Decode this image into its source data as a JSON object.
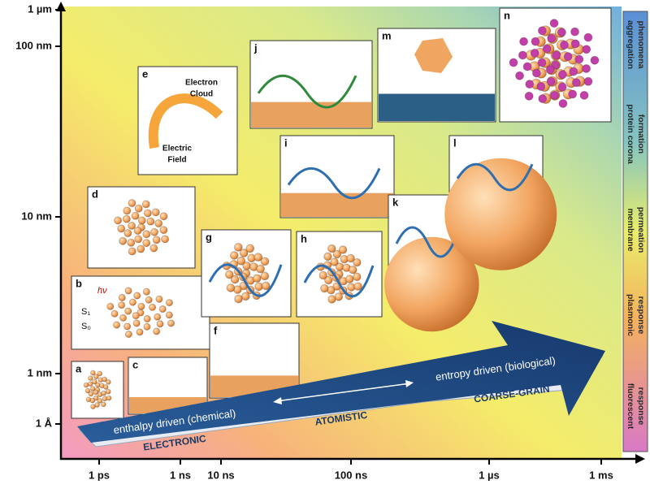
{
  "y_axis": {
    "labels": [
      "1 µm",
      "100 nm",
      "10 nm",
      "1 nm",
      "1 Å"
    ]
  },
  "x_axis": {
    "labels": [
      "1 ps",
      "1 ns",
      "10 ns",
      "100 ns",
      "1 µs",
      "1 ms"
    ]
  },
  "panels": [
    {
      "letter": "a"
    },
    {
      "letter": "b",
      "texts": [
        "hν",
        "S₁",
        "S₀"
      ]
    },
    {
      "letter": "c"
    },
    {
      "letter": "d"
    },
    {
      "letter": "e",
      "texts": [
        "Electron",
        "Cloud",
        "Electric",
        "Field"
      ]
    },
    {
      "letter": "f"
    },
    {
      "letter": "g"
    },
    {
      "letter": "h"
    },
    {
      "letter": "i"
    },
    {
      "letter": "j"
    },
    {
      "letter": "k"
    },
    {
      "letter": "l"
    },
    {
      "letter": "m"
    },
    {
      "letter": "n"
    }
  ],
  "arrow": {
    "upper_left": "enthalpy driven (chemical)",
    "upper_right": "entropy driven (biological)",
    "scales": [
      "ELECTRONIC",
      "ATOMISTIC",
      "COARSE-GRAIN"
    ]
  },
  "sidebar": [
    [
      "aggregation",
      "phenomena"
    ],
    [
      "protein corona",
      "formation"
    ],
    [
      "membrane",
      "permeation"
    ],
    [
      "plasmonic",
      "response"
    ],
    [
      "fluorescent",
      "response"
    ]
  ]
}
